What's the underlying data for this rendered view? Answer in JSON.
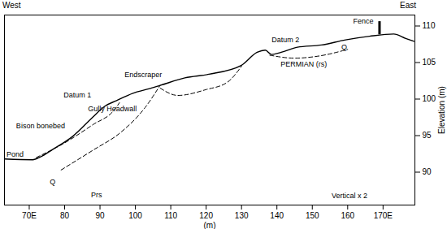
{
  "chart_data": {
    "type": "line",
    "left_label": "West",
    "right_label": "East",
    "x_label": "(m)",
    "y_label": "Elevation (m)",
    "xlim": [
      63,
      179
    ],
    "ylim": [
      85.5,
      111.5
    ],
    "xticks": [
      {
        "value": 70,
        "label": "70E"
      },
      80,
      90,
      100,
      110,
      120,
      130,
      140,
      150,
      160,
      {
        "value": 170,
        "label": "170E"
      }
    ],
    "yticks": [
      90,
      95,
      100,
      105,
      110
    ],
    "grid": false,
    "series": [
      {
        "color": "#000000",
        "line_style": "solid",
        "x": [
          63,
          71,
          73.2,
          76.6,
          82.3,
          87.9,
          91.3,
          94.7,
          99.3,
          103.8,
          107.2,
          114,
          120.8,
          129.9,
          134.4,
          136.7,
          138.5,
          141.2,
          145.8,
          152.6,
          159.4,
          166.2,
          173,
          176.4,
          178.7
        ],
        "values": [
          91.8,
          91.7,
          92.1,
          93.1,
          94.9,
          97.5,
          99,
          99.8,
          100.8,
          101.4,
          101.9,
          102.9,
          103.4,
          104.6,
          106.4,
          106.7,
          106.1,
          106.4,
          107.1,
          107.4,
          108.1,
          108.6,
          108.9,
          108.3,
          107.9
        ]
      },
      {
        "color": "#000000",
        "line_style": "dashed",
        "x": [
          72,
          80,
          88,
          94,
          95.5
        ],
        "values": [
          92,
          94,
          96.5,
          98.5,
          99.5
        ]
      },
      {
        "color": "#000000",
        "line_style": "dashed",
        "x": [
          79,
          88,
          96,
          103,
          107
        ],
        "values": [
          90.3,
          93,
          95.5,
          99,
          101.9
        ]
      },
      {
        "color": "#000000",
        "line_style": "dashed",
        "x": [
          107,
          112,
          120,
          126,
          130
        ],
        "values": [
          101.5,
          100.5,
          101.3,
          102.3,
          104.5
        ]
      },
      {
        "color": "#000000",
        "line_style": "dashed",
        "x": [
          138,
          145,
          152,
          160
        ],
        "values": [
          106,
          105.6,
          105.9,
          106.8
        ]
      }
    ],
    "fence": {
      "x": 169,
      "y1": 108.8,
      "y2": 110.6,
      "label": "Fence",
      "label_x": 168,
      "label_y": 110.7
    },
    "annotations": [
      {
        "text": "Datum 2",
        "x": 142.4,
        "y": 108.1
      },
      {
        "text": "Q",
        "x": 159,
        "y": 107.1
      },
      {
        "text": "PERMIAN (rs)",
        "x": 147.6,
        "y": 104.8
      },
      {
        "text": "Endscraper",
        "x": 102.2,
        "y": 103.3
      },
      {
        "text": "Datum 1",
        "x": 83.6,
        "y": 100.5
      },
      {
        "text": "Gully Headwall",
        "x": 93.5,
        "y": 98.7
      },
      {
        "text": "Bison bonebed",
        "x": 73.2,
        "y": 96.3
      },
      {
        "text": "Pond",
        "x": 66,
        "y": 92.4
      },
      {
        "text": "Q",
        "x": 76.6,
        "y": 88.6
      },
      {
        "text": "Prs",
        "x": 89,
        "y": 86.9
      },
      {
        "text": "Vertical x 2",
        "x": 160.5,
        "y": 86.8
      }
    ]
  }
}
